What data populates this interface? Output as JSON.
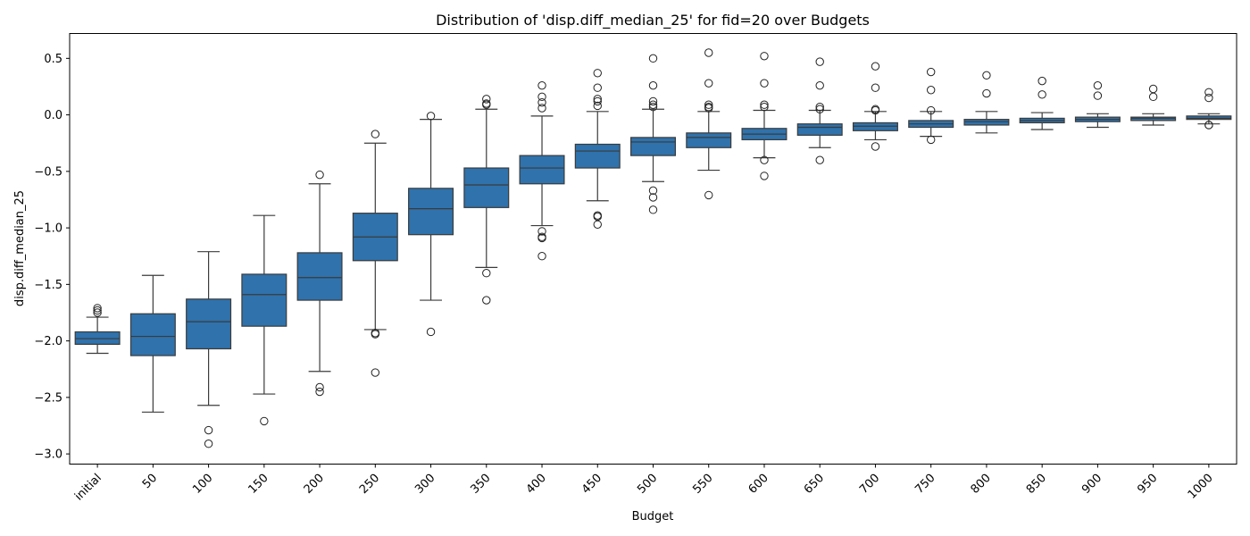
{
  "chart_data": {
    "type": "box",
    "title": "Distribution of 'disp.diff_median_25' for fid=20 over Budgets",
    "xlabel": "Budget",
    "ylabel": "disp.diff_median_25",
    "ylim": [
      -3.09,
      0.72
    ],
    "yticks": [
      {
        "value": 0.5,
        "label": "0.5"
      },
      {
        "value": 0.0,
        "label": "0.0"
      },
      {
        "value": -0.5,
        "label": "−0.5"
      },
      {
        "value": -1.0,
        "label": "−1.0"
      },
      {
        "value": -1.5,
        "label": "−1.5"
      },
      {
        "value": -2.0,
        "label": "−2.0"
      },
      {
        "value": -2.5,
        "label": "−2.5"
      },
      {
        "value": -3.0,
        "label": "−3.0"
      }
    ],
    "box_color": "#2f72ac",
    "categories": [
      "initial",
      "50",
      "100",
      "150",
      "200",
      "250",
      "300",
      "350",
      "400",
      "450",
      "500",
      "550",
      "600",
      "650",
      "700",
      "750",
      "800",
      "850",
      "900",
      "950",
      "1000"
    ],
    "boxes": [
      {
        "whisker_low": -2.11,
        "q1": -2.03,
        "median": -1.98,
        "q3": -1.92,
        "whisker_high": -1.79,
        "outliers": [
          -1.71,
          -1.73,
          -1.75
        ]
      },
      {
        "whisker_low": -2.63,
        "q1": -2.13,
        "median": -1.96,
        "q3": -1.76,
        "whisker_high": -1.42,
        "outliers": []
      },
      {
        "whisker_low": -2.57,
        "q1": -2.07,
        "median": -1.83,
        "q3": -1.63,
        "whisker_high": -1.21,
        "outliers": [
          -2.79,
          -2.91
        ]
      },
      {
        "whisker_low": -2.47,
        "q1": -1.87,
        "median": -1.59,
        "q3": -1.41,
        "whisker_high": -0.89,
        "outliers": [
          -2.71
        ]
      },
      {
        "whisker_low": -2.27,
        "q1": -1.64,
        "median": -1.44,
        "q3": -1.22,
        "whisker_high": -0.61,
        "outliers": [
          -0.53,
          -2.41,
          -2.45
        ]
      },
      {
        "whisker_low": -1.9,
        "q1": -1.29,
        "median": -1.08,
        "q3": -0.87,
        "whisker_high": -0.25,
        "outliers": [
          -0.17,
          -1.93,
          -1.94,
          -2.28
        ]
      },
      {
        "whisker_low": -1.64,
        "q1": -1.06,
        "median": -0.83,
        "q3": -0.65,
        "whisker_high": -0.04,
        "outliers": [
          -0.01,
          -1.92
        ]
      },
      {
        "whisker_low": -1.35,
        "q1": -0.82,
        "median": -0.62,
        "q3": -0.47,
        "whisker_high": 0.05,
        "outliers": [
          0.14,
          0.1,
          0.09,
          -1.4,
          -1.64
        ]
      },
      {
        "whisker_low": -0.98,
        "q1": -0.61,
        "median": -0.47,
        "q3": -0.36,
        "whisker_high": -0.01,
        "outliers": [
          0.26,
          0.16,
          0.11,
          0.06,
          -1.03,
          -1.08,
          -1.09,
          -1.25
        ]
      },
      {
        "whisker_low": -0.76,
        "q1": -0.47,
        "median": -0.32,
        "q3": -0.26,
        "whisker_high": 0.03,
        "outliers": [
          0.37,
          0.24,
          0.14,
          0.12,
          0.08,
          -0.89,
          -0.9,
          -0.97
        ]
      },
      {
        "whisker_low": -0.59,
        "q1": -0.36,
        "median": -0.24,
        "q3": -0.2,
        "whisker_high": 0.05,
        "outliers": [
          0.5,
          0.26,
          0.12,
          0.09,
          0.07,
          -0.67,
          -0.73,
          -0.84
        ]
      },
      {
        "whisker_low": -0.49,
        "q1": -0.29,
        "median": -0.2,
        "q3": -0.16,
        "whisker_high": 0.03,
        "outliers": [
          0.55,
          0.28,
          0.09,
          0.07,
          0.06,
          -0.71
        ]
      },
      {
        "whisker_low": -0.38,
        "q1": -0.22,
        "median": -0.17,
        "q3": -0.12,
        "whisker_high": 0.04,
        "outliers": [
          0.52,
          0.28,
          0.09,
          0.07,
          -0.4,
          -0.54
        ]
      },
      {
        "whisker_low": -0.29,
        "q1": -0.18,
        "median": -0.11,
        "q3": -0.08,
        "whisker_high": 0.04,
        "outliers": [
          0.47,
          0.26,
          0.07,
          0.05,
          -0.4
        ]
      },
      {
        "whisker_low": -0.22,
        "q1": -0.14,
        "median": -0.1,
        "q3": -0.07,
        "whisker_high": 0.03,
        "outliers": [
          0.43,
          0.24,
          0.05,
          0.04,
          -0.28
        ]
      },
      {
        "whisker_low": -0.19,
        "q1": -0.11,
        "median": -0.08,
        "q3": -0.05,
        "whisker_high": 0.03,
        "outliers": [
          0.38,
          0.22,
          0.04,
          -0.22
        ]
      },
      {
        "whisker_low": -0.16,
        "q1": -0.09,
        "median": -0.06,
        "q3": -0.04,
        "whisker_high": 0.03,
        "outliers": [
          0.35,
          0.19
        ]
      },
      {
        "whisker_low": -0.13,
        "q1": -0.07,
        "median": -0.05,
        "q3": -0.03,
        "whisker_high": 0.02,
        "outliers": [
          0.3,
          0.18
        ]
      },
      {
        "whisker_low": -0.11,
        "q1": -0.06,
        "median": -0.04,
        "q3": -0.02,
        "whisker_high": 0.01,
        "outliers": [
          0.26,
          0.17
        ]
      },
      {
        "whisker_low": -0.09,
        "q1": -0.05,
        "median": -0.03,
        "q3": -0.02,
        "whisker_high": 0.01,
        "outliers": [
          0.23,
          0.16
        ]
      },
      {
        "whisker_low": -0.08,
        "q1": -0.04,
        "median": -0.03,
        "q3": -0.01,
        "whisker_high": 0.01,
        "outliers": [
          0.2,
          0.15,
          -0.09,
          -0.09
        ]
      }
    ]
  }
}
